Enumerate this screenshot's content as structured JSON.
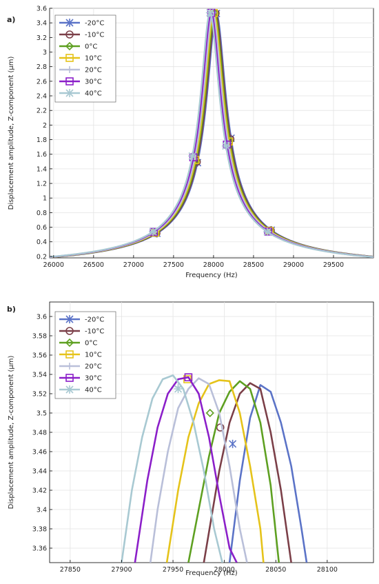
{
  "chart_data": [
    {
      "panel_label": "a)",
      "type": "line",
      "xlabel": "Frequency (Hz)",
      "ylabel": "Displacement amplitude, Z-component (μm)",
      "xlim": [
        25950,
        30000
      ],
      "ylim": [
        0.18,
        3.6
      ],
      "xticks": [
        26000,
        26500,
        27000,
        27500,
        28000,
        28500,
        29000,
        29500
      ],
      "yticks": [
        0.2,
        0.4,
        0.6,
        0.8,
        1,
        1.2,
        1.4,
        1.6,
        1.8,
        2,
        2.2,
        2.4,
        2.6,
        2.8,
        3,
        3.2,
        3.4,
        3.6
      ],
      "grid": true,
      "legend": "top-left",
      "series": [
        {
          "name": "-20°C",
          "color": "#5B73C7",
          "marker": "asterisk",
          "f0": 28036,
          "peak": 3.529
        },
        {
          "name": "-10°C",
          "color": "#7B3F48",
          "marker": "circle",
          "f0": 28026,
          "peak": 3.531
        },
        {
          "name": "0°C",
          "color": "#5EA021",
          "marker": "diamond",
          "f0": 28014,
          "peak": 3.533
        },
        {
          "name": "10°C",
          "color": "#E5C31A",
          "marker": "square",
          "f0": 28003,
          "peak": 3.534
        },
        {
          "name": "20°C",
          "color": "#B9BFD9",
          "marker": "plus",
          "f0": 27990,
          "peak": 3.536
        },
        {
          "name": "30°C",
          "color": "#8B1FC9",
          "marker": "square",
          "f0": 27971,
          "peak": 3.537
        },
        {
          "name": "40°C",
          "color": "#A8C9D2",
          "marker": "star",
          "f0": 27956,
          "peak": 3.539
        }
      ]
    },
    {
      "panel_label": "b)",
      "type": "line",
      "xlabel": "Frequency (Hz)",
      "ylabel": "Displacement amplitude, Z-component (μm)",
      "xlim": [
        27830,
        28145
      ],
      "ylim": [
        3.345,
        3.615
      ],
      "xticks": [
        27850,
        27900,
        27950,
        28000,
        28050,
        28100
      ],
      "yticks": [
        3.36,
        3.38,
        3.4,
        3.42,
        3.44,
        3.46,
        3.48,
        3.5,
        3.52,
        3.54,
        3.56,
        3.58,
        3.6
      ],
      "grid": true,
      "legend": "top-left",
      "series": [
        {
          "name": "-20°C",
          "color": "#5B73C7",
          "marker": "asterisk",
          "x": [
            28005,
            28015,
            28025,
            28035,
            28045,
            28055,
            28065,
            28075,
            28080
          ],
          "y": [
            3.345,
            3.43,
            3.495,
            3.529,
            3.522,
            3.49,
            3.445,
            3.38,
            3.345
          ],
          "marker_at": [
            28008,
            3.468
          ]
        },
        {
          "name": "-10°C",
          "color": "#7B3F48",
          "marker": "circle",
          "x": [
            27980,
            27995,
            28005,
            28015,
            28025,
            28035,
            28045,
            28055,
            28065
          ],
          "y": [
            3.345,
            3.44,
            3.49,
            3.52,
            3.531,
            3.525,
            3.48,
            3.42,
            3.345
          ],
          "marker_at": [
            27996,
            3.485
          ]
        },
        {
          "name": "0°C",
          "color": "#5EA021",
          "marker": "diamond",
          "x": [
            27965,
            27975,
            27985,
            27995,
            28005,
            28015,
            28025,
            28035,
            28045,
            28053
          ],
          "y": [
            3.345,
            3.4,
            3.455,
            3.5,
            3.522,
            3.533,
            3.525,
            3.49,
            3.425,
            3.345
          ],
          "marker_at": [
            27986,
            3.5
          ]
        },
        {
          "name": "10°C",
          "color": "#E5C31A",
          "marker": "square",
          "x": [
            27944,
            27955,
            27965,
            27975,
            27985,
            27995,
            28005,
            28015,
            28025,
            28035,
            28038
          ],
          "y": [
            3.345,
            3.42,
            3.475,
            3.51,
            3.53,
            3.534,
            3.533,
            3.5,
            3.445,
            3.38,
            3.345
          ],
          "marker_at": [
            27964,
            3.535
          ]
        },
        {
          "name": "20°C",
          "color": "#B9BFD9",
          "marker": "plus",
          "x": [
            27928,
            27935,
            27945,
            27955,
            27965,
            27975,
            27985,
            27995,
            28005,
            28015,
            28022
          ],
          "y": [
            3.345,
            3.4,
            3.46,
            3.505,
            3.525,
            3.536,
            3.53,
            3.5,
            3.445,
            3.38,
            3.345
          ],
          "marker_at": [
            27955,
            3.527
          ]
        },
        {
          "name": "30°C",
          "color": "#8B1FC9",
          "marker": "square",
          "x": [
            27913,
            27925,
            27935,
            27945,
            27955,
            27965,
            27975,
            27985,
            27995,
            28005,
            28012
          ],
          "y": [
            3.345,
            3.43,
            3.485,
            3.52,
            3.535,
            3.537,
            3.52,
            3.475,
            3.415,
            3.36,
            3.345
          ],
          "marker_at": [
            27965,
            3.537
          ]
        },
        {
          "name": "40°C",
          "color": "#A8C9D2",
          "marker": "star",
          "x": [
            27900,
            27910,
            27920,
            27930,
            27940,
            27950,
            27960,
            27970,
            27980,
            27990,
            27998
          ],
          "y": [
            3.345,
            3.42,
            3.475,
            3.515,
            3.535,
            3.539,
            3.525,
            3.49,
            3.44,
            3.38,
            3.345
          ],
          "marker_at": [
            27955,
            3.525
          ]
        }
      ]
    }
  ]
}
